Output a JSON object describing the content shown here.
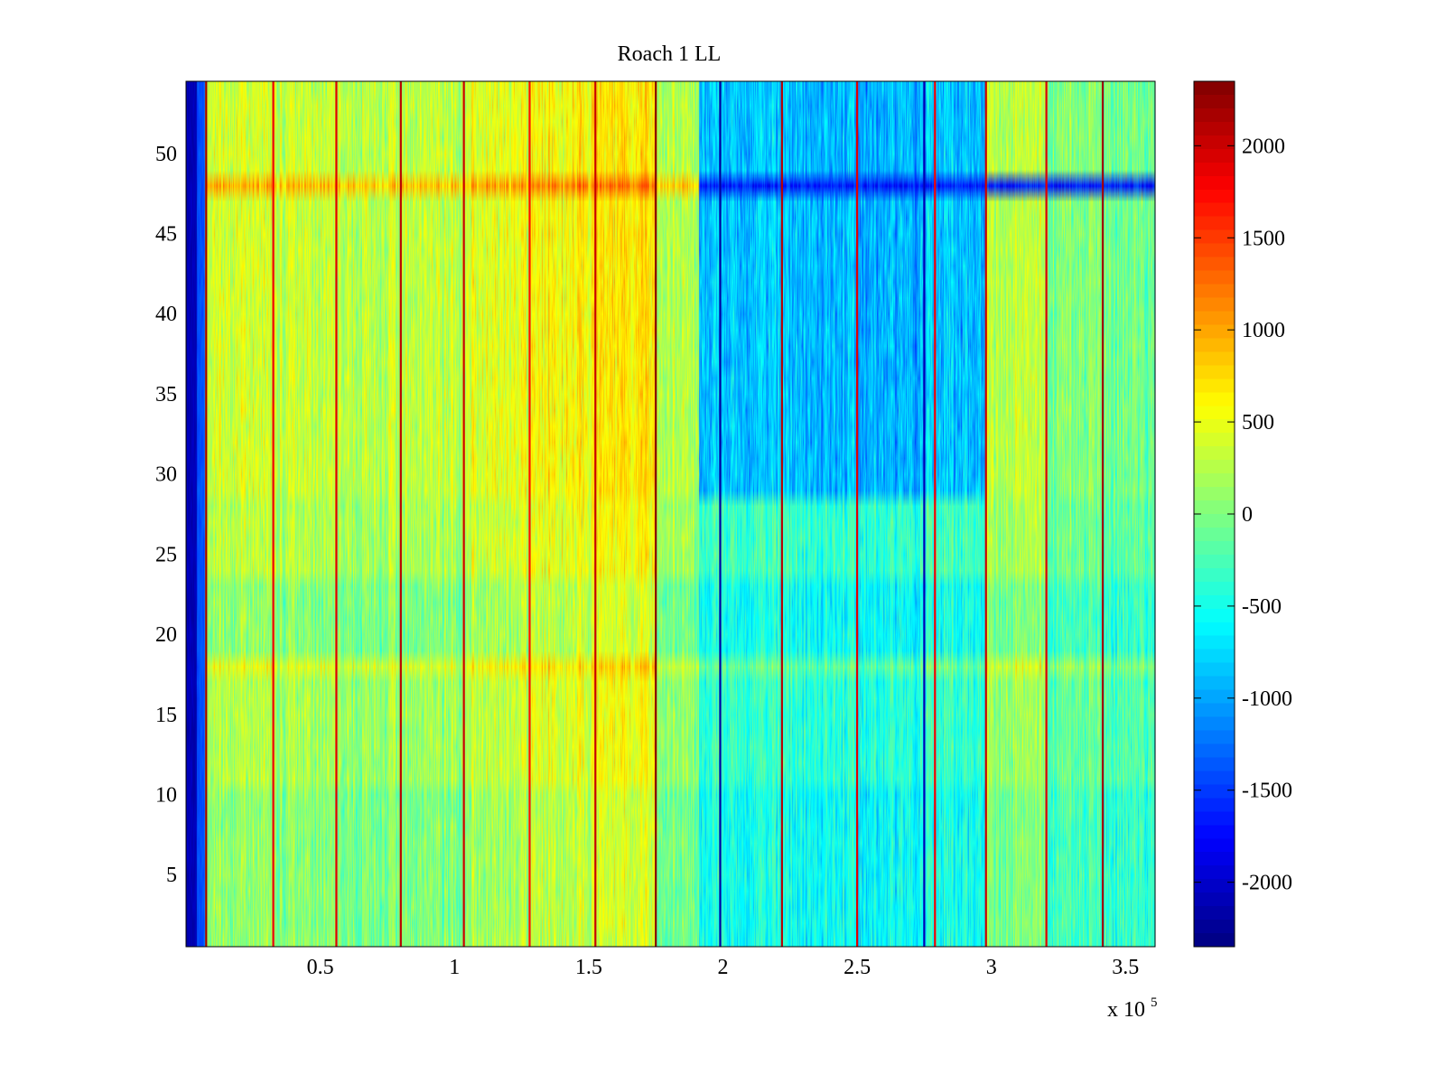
{
  "chart_data": {
    "type": "heatmap",
    "title": "Roach 1 LL",
    "xlabel": "",
    "ylabel": "",
    "xlim": [
      0,
      361000
    ],
    "ylim": [
      0.5,
      54.5
    ],
    "x_exponent_label": "x 10",
    "x_exponent_sup": "5",
    "x_ticks": [
      {
        "value": 50000,
        "label": "0.5"
      },
      {
        "value": 100000,
        "label": "1"
      },
      {
        "value": 150000,
        "label": "1.5"
      },
      {
        "value": 200000,
        "label": "2"
      },
      {
        "value": 250000,
        "label": "2.5"
      },
      {
        "value": 300000,
        "label": "3"
      },
      {
        "value": 350000,
        "label": "3.5"
      }
    ],
    "y_ticks": [
      {
        "value": 5,
        "label": "5"
      },
      {
        "value": 10,
        "label": "10"
      },
      {
        "value": 15,
        "label": "15"
      },
      {
        "value": 20,
        "label": "20"
      },
      {
        "value": 25,
        "label": "25"
      },
      {
        "value": 30,
        "label": "30"
      },
      {
        "value": 35,
        "label": "35"
      },
      {
        "value": 40,
        "label": "40"
      },
      {
        "value": 45,
        "label": "45"
      },
      {
        "value": 50,
        "label": "50"
      }
    ],
    "colorbar": {
      "colormap": "jet",
      "clim": [
        -2350,
        2350
      ],
      "ticks": [
        {
          "value": 2000,
          "label": "2000"
        },
        {
          "value": 1500,
          "label": "1500"
        },
        {
          "value": 1000,
          "label": "1000"
        },
        {
          "value": 500,
          "label": "500"
        },
        {
          "value": 0,
          "label": "0"
        },
        {
          "value": -500,
          "label": "-500"
        },
        {
          "value": -1000,
          "label": "-1000"
        },
        {
          "value": -1500,
          "label": "-1500"
        },
        {
          "value": -2000,
          "label": "-2000"
        }
      ]
    },
    "rows": 54,
    "x_segments": [
      {
        "x0": 0,
        "x1": 4000,
        "mean": -2100
      },
      {
        "x0": 4000,
        "x1": 7000,
        "mean": -1400
      },
      {
        "x0": 7000,
        "x1": 32000,
        "mean": 250
      },
      {
        "x0": 32000,
        "x1": 56000,
        "mean": 150
      },
      {
        "x0": 56000,
        "x1": 80000,
        "mean": 100
      },
      {
        "x0": 80000,
        "x1": 103000,
        "mean": 150
      },
      {
        "x0": 103000,
        "x1": 128000,
        "mean": 300
      },
      {
        "x0": 128000,
        "x1": 152000,
        "mean": 450
      },
      {
        "x0": 152000,
        "x1": 175000,
        "mean": 550
      },
      {
        "x0": 175000,
        "x1": 191000,
        "mean": 100
      },
      {
        "x0": 191000,
        "x1": 222000,
        "mean": -350
      },
      {
        "x0": 222000,
        "x1": 250000,
        "mean": -400
      },
      {
        "x0": 250000,
        "x1": 275000,
        "mean": -450
      },
      {
        "x0": 275000,
        "x1": 298000,
        "mean": -350
      },
      {
        "x0": 298000,
        "x1": 320000,
        "mean": 150
      },
      {
        "x0": 320000,
        "x1": 341000,
        "mean": -100
      },
      {
        "x0": 341000,
        "x1": 361000,
        "mean": -250
      }
    ],
    "row_bands": [
      {
        "y0": 1,
        "y1": 10,
        "offset": -150
      },
      {
        "y0": 11,
        "y1": 17,
        "offset": 0
      },
      {
        "y0": 18,
        "y1": 18,
        "offset": 250
      },
      {
        "y0": 19,
        "y1": 23,
        "offset": -150
      },
      {
        "y0": 24,
        "y1": 28,
        "offset": 50
      },
      {
        "y0": 29,
        "y1": 47,
        "offset": 150
      },
      {
        "y0": 48,
        "y1": 48,
        "offset": 700
      },
      {
        "y0": 49,
        "y1": 54,
        "offset": 150
      }
    ],
    "blue_region": {
      "x0": 191000,
      "x1": 298000,
      "y0": 29,
      "y1": 54,
      "shift": -650
    },
    "blue_stripe_row": {
      "y": 48,
      "x0": 191000,
      "x1": 361000,
      "value": -1650
    },
    "spike_columns": [
      {
        "x": 7500,
        "value": 2200
      },
      {
        "x": 32500,
        "value": 1800
      },
      {
        "x": 56000,
        "value": 1900
      },
      {
        "x": 80000,
        "value": 2100
      },
      {
        "x": 103500,
        "value": 2000
      },
      {
        "x": 128000,
        "value": 1700
      },
      {
        "x": 152500,
        "value": 2000
      },
      {
        "x": 175000,
        "value": 2300
      },
      {
        "x": 199000,
        "value": -2200
      },
      {
        "x": 222000,
        "value": 2100
      },
      {
        "x": 250000,
        "value": 1900
      },
      {
        "x": 275000,
        "value": -2100
      },
      {
        "x": 279000,
        "value": 1800
      },
      {
        "x": 298000,
        "value": 2000
      },
      {
        "x": 320500,
        "value": 1900
      },
      {
        "x": 341500,
        "value": 2200
      }
    ]
  }
}
